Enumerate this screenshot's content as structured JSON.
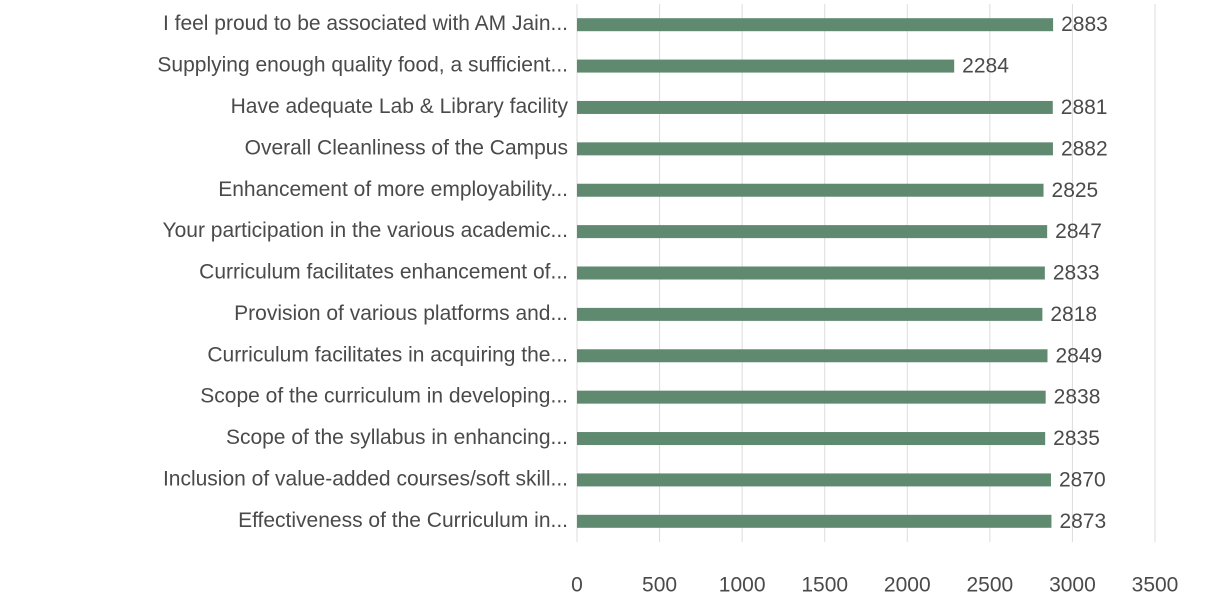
{
  "chart_data": {
    "type": "bar",
    "orientation": "horizontal",
    "categories": [
      "I feel proud to be associated with AM Jain...",
      "Supplying enough quality food, a sufficient...",
      "Have adequate Lab & Library facility",
      "Overall Cleanliness of the Campus",
      "Enhancement of more employability...",
      "Your participation in the various academic...",
      "Curriculum facilitates enhancement of...",
      "Provision of various platforms and...",
      "Curriculum facilitates in acquiring the...",
      "Scope of the curriculum in developing...",
      "Scope of the syllabus in enhancing...",
      "Inclusion of value-added courses/soft skill...",
      "Effectiveness of the Curriculum in..."
    ],
    "values": [
      2883,
      2284,
      2881,
      2882,
      2825,
      2847,
      2833,
      2818,
      2849,
      2838,
      2835,
      2870,
      2873
    ],
    "color": "#5f8a70",
    "xlim": [
      0,
      3500
    ],
    "xticks": [
      0,
      500,
      1000,
      1500,
      2000,
      2500,
      3000,
      3500
    ],
    "grid": true
  }
}
